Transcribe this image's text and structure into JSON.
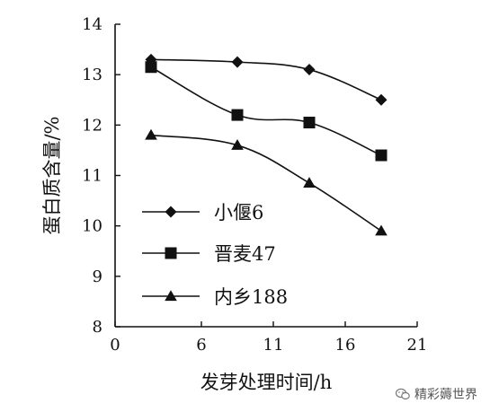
{
  "chart_data": {
    "type": "line",
    "xlabel": "发芽处理时间/h",
    "ylabel": "蛋白质含量/%",
    "xlim": [
      0,
      21
    ],
    "ylim": [
      8,
      14
    ],
    "xticks": [
      0,
      6,
      11,
      16,
      21
    ],
    "yticks": [
      8,
      9,
      10,
      11,
      12,
      13,
      14
    ],
    "grid": false,
    "legend_position": "lower-left",
    "series": [
      {
        "name": "小偃6",
        "marker": "diamond",
        "x": [
          2.5,
          8.5,
          13.5,
          18.5
        ],
        "y": [
          13.3,
          13.25,
          13.1,
          12.5
        ]
      },
      {
        "name": "晋麦47",
        "marker": "square",
        "x": [
          2.5,
          8.5,
          13.5,
          18.5
        ],
        "y": [
          13.15,
          12.2,
          12.05,
          11.4
        ]
      },
      {
        "name": "内乡188",
        "marker": "triangle",
        "x": [
          2.5,
          8.5,
          13.5,
          18.5
        ],
        "y": [
          11.8,
          11.6,
          10.85,
          9.9
        ]
      }
    ]
  },
  "watermark": {
    "text": "精彩薅世界",
    "icon": "wechat-icon"
  }
}
